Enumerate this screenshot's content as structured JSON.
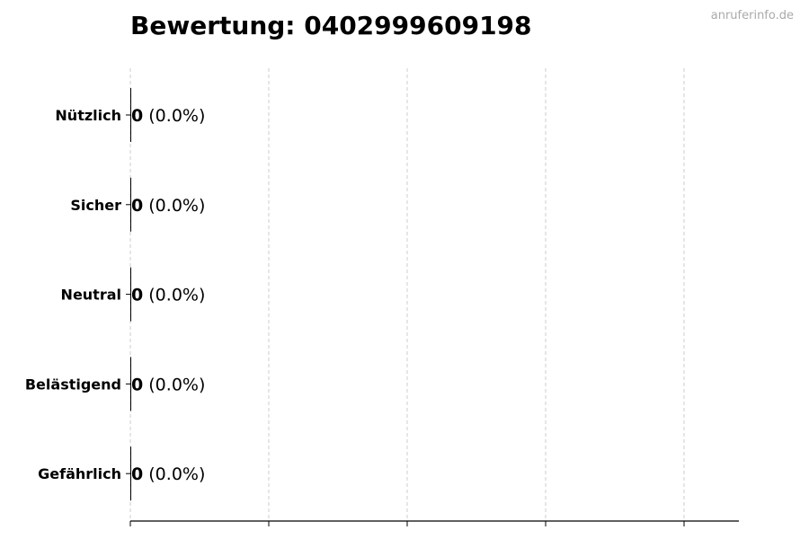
{
  "watermark": "anruferinfo.de",
  "chart_data": {
    "type": "bar",
    "orientation": "horizontal",
    "title": "Bewertung: 0402999609198",
    "xlabel": "",
    "ylabel": "",
    "categories": [
      "Nützlich",
      "Sicher",
      "Neutral",
      "Belästigend",
      "Gefährlich"
    ],
    "values": [
      0,
      0,
      0,
      0,
      0
    ],
    "value_labels": [
      "0",
      "0",
      "0",
      "0",
      "0"
    ],
    "percent_labels": [
      "(0.0%)",
      "(0.0%)",
      "(0.0%)",
      "(0.0%)",
      "(0.0%)"
    ],
    "grid": "x, dashed",
    "x_tick_labels_shown": false,
    "bar_color": "#000000",
    "grid_color": "#cccccc"
  }
}
